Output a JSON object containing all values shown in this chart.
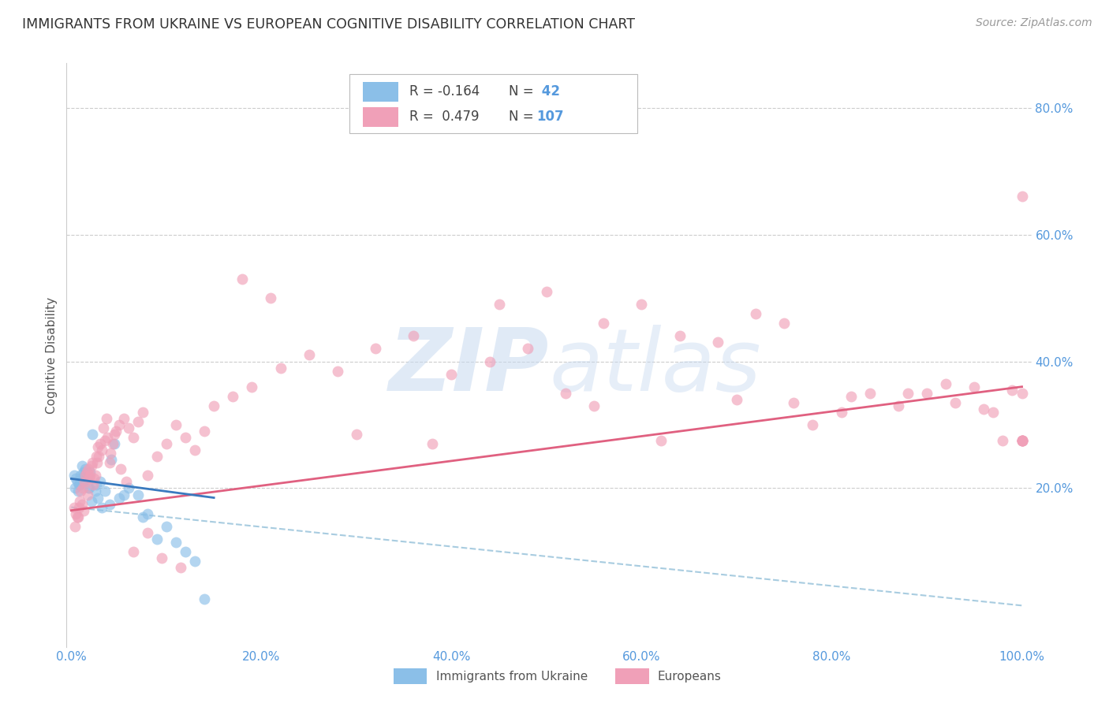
{
  "title": "IMMIGRANTS FROM UKRAINE VS EUROPEAN COGNITIVE DISABILITY CORRELATION CHART",
  "source": "Source: ZipAtlas.com",
  "ylabel_label": "Cognitive Disability",
  "legend_label1": "Immigrants from Ukraine",
  "legend_label2": "Europeans",
  "R1": -0.164,
  "N1": 42,
  "R2": 0.479,
  "N2": 107,
  "blue_color": "#8bbfe8",
  "pink_color": "#f0a0b8",
  "blue_line_color": "#3a7abf",
  "pink_line_color": "#e06080",
  "dashed_line_color": "#a8cce0",
  "axis_color": "#5599dd",
  "grid_color": "#cccccc",
  "background_color": "#ffffff",
  "blue_scatter_x": [
    0.5,
    0.8,
    1.0,
    1.2,
    1.5,
    1.8,
    2.0,
    2.5,
    3.0,
    4.0,
    5.0,
    6.0,
    7.0,
    8.0,
    10.0,
    12.0,
    14.0,
    0.3,
    0.6,
    0.9,
    1.1,
    1.4,
    1.6,
    1.9,
    2.2,
    2.8,
    3.5,
    4.5,
    5.5,
    7.5,
    9.0,
    11.0,
    13.0,
    0.4,
    0.7,
    1.0,
    1.3,
    1.7,
    2.1,
    2.6,
    3.2,
    4.2
  ],
  "blue_scatter_y": [
    21.5,
    20.5,
    22.0,
    21.0,
    23.0,
    20.0,
    22.5,
    19.5,
    21.0,
    17.5,
    18.5,
    20.0,
    19.0,
    16.0,
    14.0,
    10.0,
    2.5,
    22.0,
    21.0,
    20.5,
    23.5,
    22.0,
    21.5,
    20.0,
    28.5,
    18.5,
    19.5,
    27.0,
    19.0,
    15.5,
    12.0,
    11.5,
    8.5,
    20.0,
    19.5,
    21.0,
    22.5,
    21.5,
    18.0,
    20.5,
    17.0,
    24.5
  ],
  "pink_scatter_x": [
    0.3,
    0.5,
    0.7,
    0.9,
    1.1,
    1.3,
    1.5,
    1.7,
    1.9,
    2.1,
    2.3,
    2.5,
    2.7,
    2.9,
    3.2,
    3.5,
    3.8,
    4.1,
    4.4,
    4.7,
    5.0,
    5.5,
    6.0,
    6.5,
    7.0,
    7.5,
    8.0,
    9.0,
    10.0,
    11.0,
    12.0,
    13.0,
    14.0,
    15.0,
    17.0,
    19.0,
    22.0,
    25.0,
    28.0,
    32.0,
    36.0,
    40.0,
    44.0,
    48.0,
    52.0,
    56.0,
    60.0,
    64.0,
    68.0,
    72.0,
    75.0,
    78.0,
    81.0,
    84.0,
    87.0,
    90.0,
    93.0,
    95.0,
    97.0,
    99.0,
    100.0,
    0.4,
    0.6,
    0.8,
    1.0,
    1.2,
    1.4,
    1.6,
    1.8,
    2.0,
    2.2,
    2.4,
    2.6,
    2.8,
    3.0,
    3.4,
    3.7,
    4.0,
    4.5,
    5.2,
    5.8,
    6.5,
    8.0,
    9.5,
    11.5,
    18.0,
    21.0,
    30.0,
    38.0,
    45.0,
    50.0,
    55.0,
    62.0,
    70.0,
    76.0,
    82.0,
    88.0,
    92.0,
    96.0,
    98.0,
    100.0,
    100.0,
    100.0,
    100.0,
    100.0,
    100.0,
    100.0
  ],
  "pink_scatter_y": [
    17.0,
    16.0,
    15.5,
    18.0,
    17.5,
    16.5,
    22.0,
    19.0,
    21.5,
    23.5,
    20.5,
    22.0,
    24.0,
    25.0,
    26.0,
    27.5,
    28.0,
    25.5,
    27.0,
    29.0,
    30.0,
    31.0,
    29.5,
    28.0,
    30.5,
    32.0,
    22.0,
    25.0,
    27.0,
    30.0,
    28.0,
    26.0,
    29.0,
    33.0,
    34.5,
    36.0,
    39.0,
    41.0,
    38.5,
    42.0,
    44.0,
    38.0,
    40.0,
    42.0,
    35.0,
    46.0,
    49.0,
    44.0,
    43.0,
    47.5,
    46.0,
    30.0,
    32.0,
    35.0,
    33.0,
    35.0,
    33.5,
    36.0,
    32.0,
    35.5,
    66.0,
    14.0,
    15.5,
    17.0,
    19.5,
    20.0,
    21.0,
    22.5,
    23.0,
    22.0,
    24.0,
    21.5,
    25.0,
    26.5,
    27.0,
    29.5,
    31.0,
    24.0,
    28.5,
    23.0,
    21.0,
    10.0,
    13.0,
    9.0,
    7.5,
    53.0,
    50.0,
    28.5,
    27.0,
    49.0,
    51.0,
    33.0,
    27.5,
    34.0,
    33.5,
    34.5,
    35.0,
    36.5,
    32.5,
    27.5,
    35.0,
    27.5,
    27.5,
    27.5,
    27.5,
    27.5,
    27.5
  ]
}
